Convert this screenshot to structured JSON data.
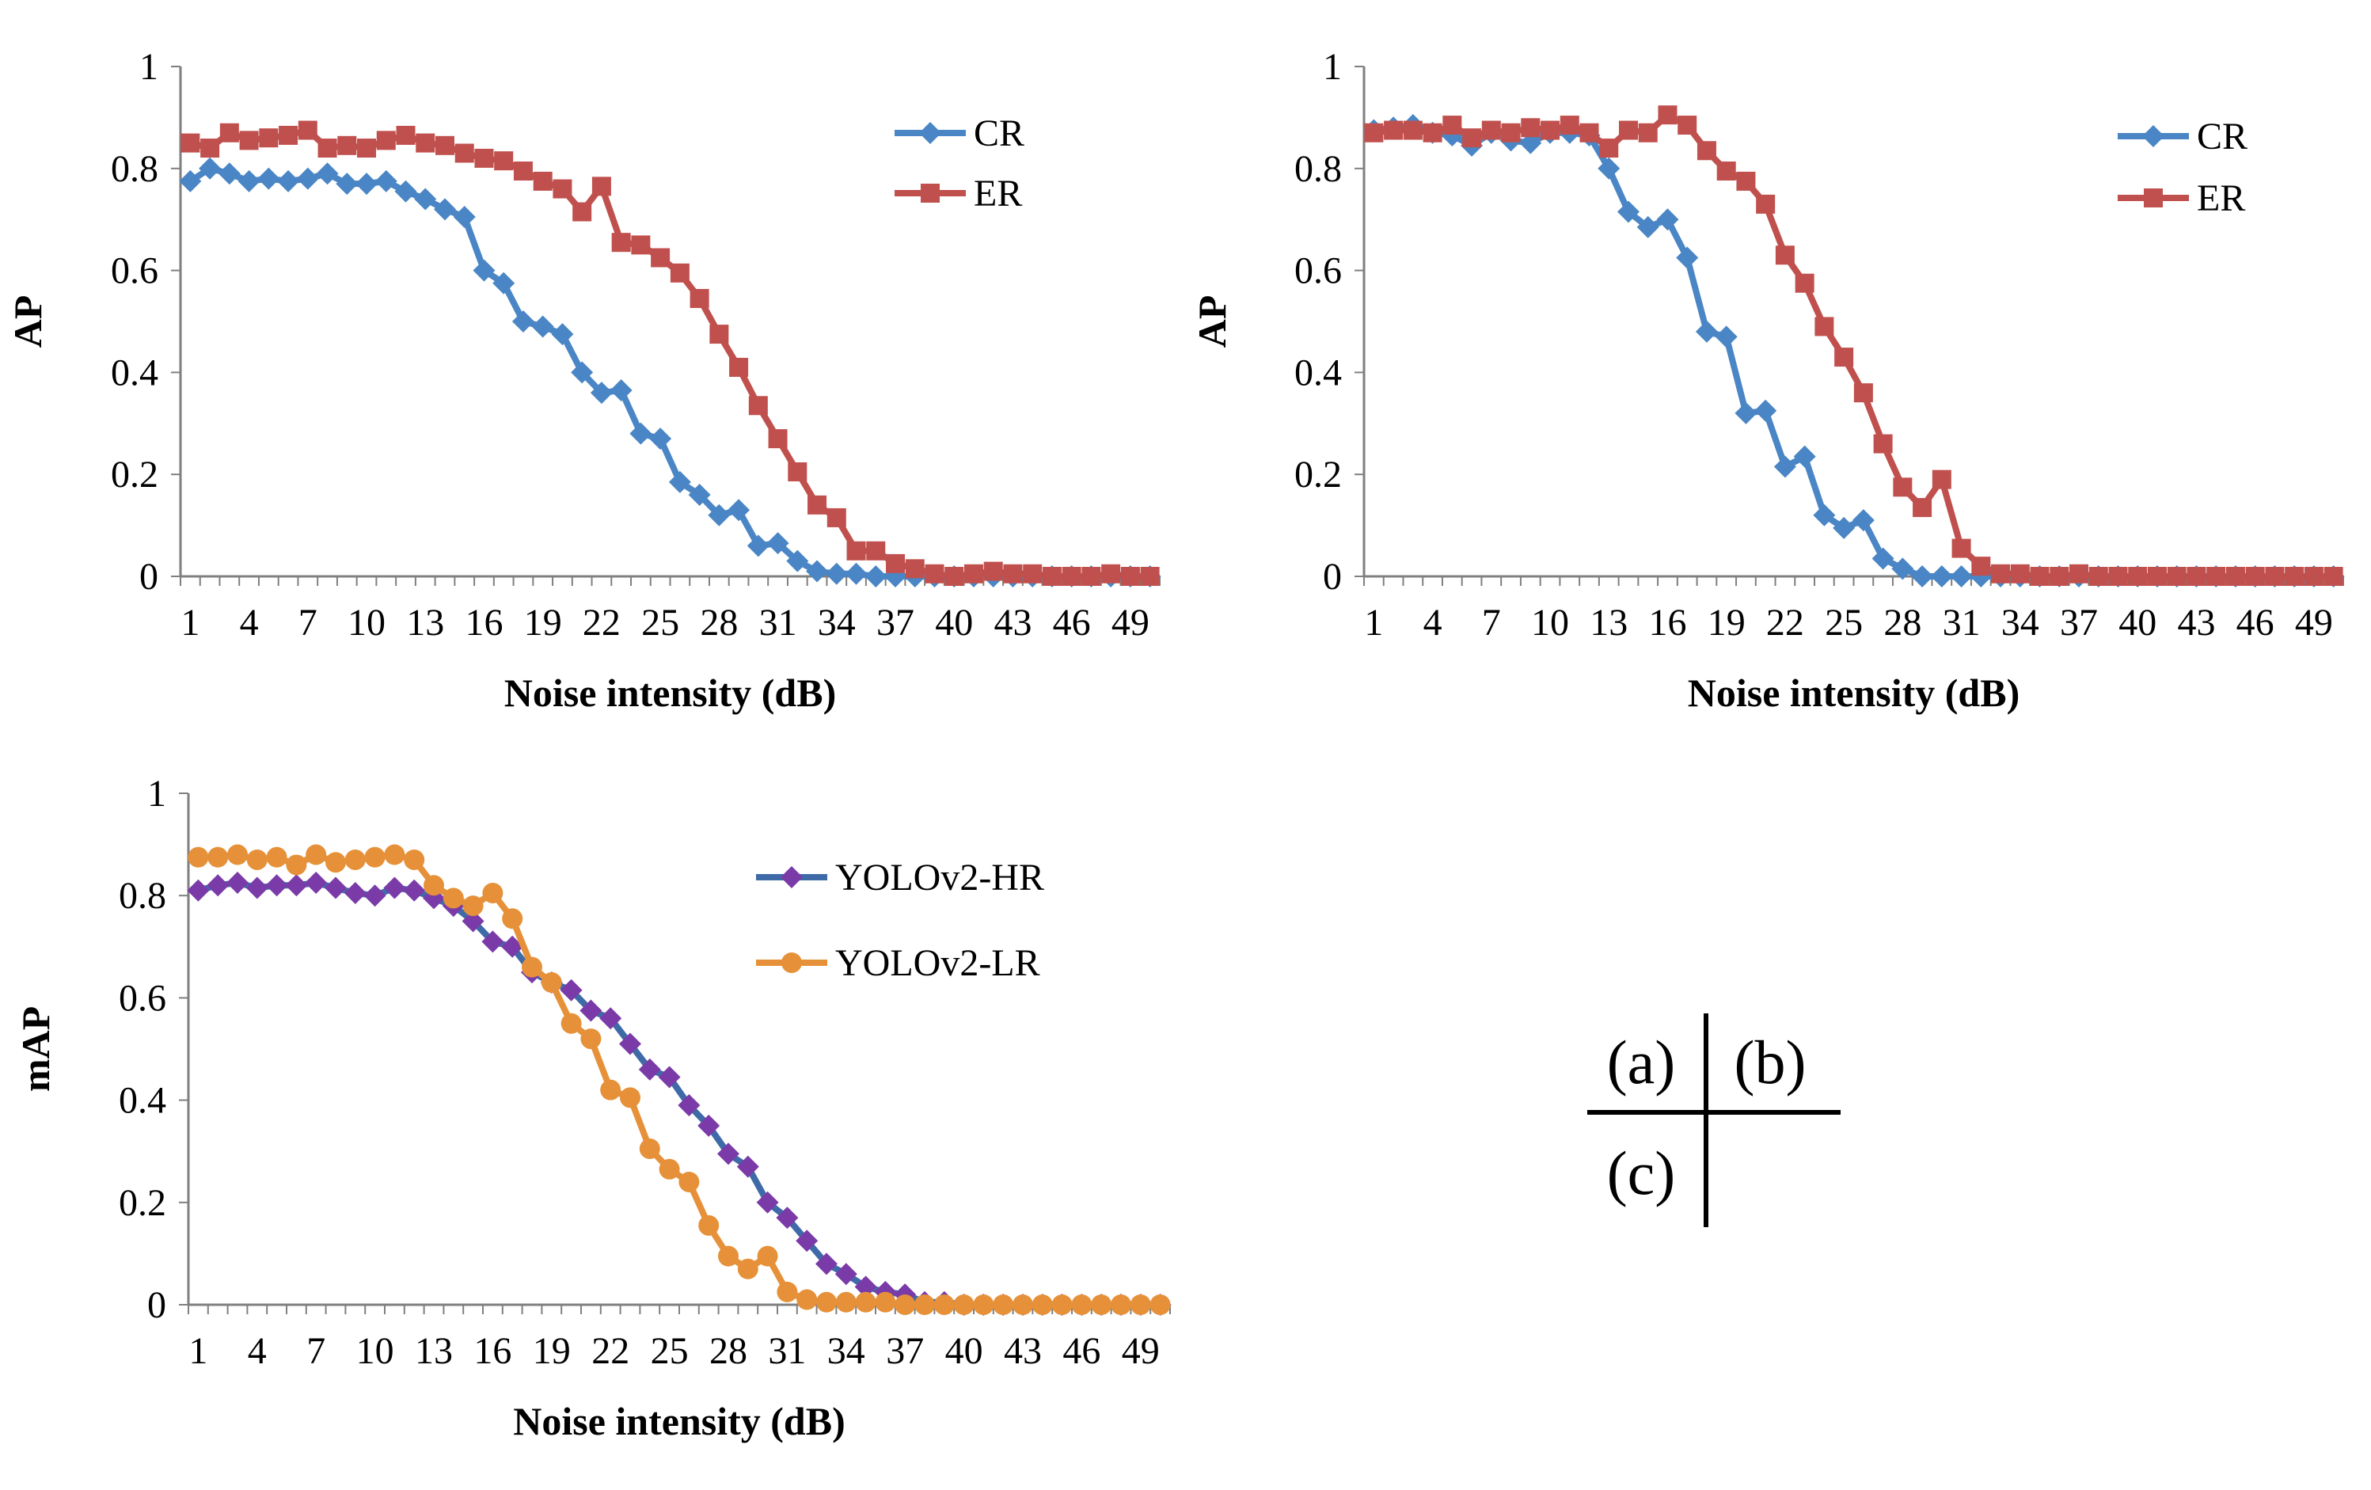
{
  "chart_data": [
    {
      "type": "line",
      "panel": "a",
      "xlabel": "Noise intensity (dB)",
      "ylabel": "AP",
      "ylim": [
        0,
        1
      ],
      "xlim": [
        1,
        50
      ],
      "x": [
        1,
        2,
        3,
        4,
        5,
        6,
        7,
        8,
        9,
        10,
        11,
        12,
        13,
        14,
        15,
        16,
        17,
        18,
        19,
        20,
        21,
        22,
        23,
        24,
        25,
        26,
        27,
        28,
        29,
        30,
        31,
        32,
        33,
        34,
        35,
        36,
        37,
        38,
        39,
        40,
        41,
        42,
        43,
        44,
        45,
        46,
        47,
        48,
        49,
        50
      ],
      "x_tick_labels": [
        "1",
        "4",
        "7",
        "10",
        "13",
        "16",
        "19",
        "22",
        "25",
        "28",
        "31",
        "34",
        "37",
        "40",
        "43",
        "46",
        "49"
      ],
      "y_tick_labels": [
        "0",
        "0.2",
        "0.4",
        "0.6",
        "0.8",
        "1"
      ],
      "grid": false,
      "legend_position": "top-right",
      "series": [
        {
          "name": "CR",
          "color": "#4A86C5",
          "marker": "diamond",
          "values": [
            0.775,
            0.8,
            0.79,
            0.775,
            0.78,
            0.775,
            0.78,
            0.79,
            0.77,
            0.77,
            0.775,
            0.755,
            0.74,
            0.72,
            0.705,
            0.6,
            0.575,
            0.5,
            0.49,
            0.475,
            0.4,
            0.36,
            0.365,
            0.28,
            0.27,
            0.185,
            0.16,
            0.12,
            0.13,
            0.06,
            0.065,
            0.03,
            0.01,
            0.005,
            0.005,
            0.0,
            0.0,
            0.0,
            0.0,
            0.0,
            0.0,
            0.0,
            0.0,
            0.0,
            0.0,
            0.0,
            0.0,
            0.0,
            0.0,
            0.0
          ]
        },
        {
          "name": "ER",
          "color": "#C0504D",
          "marker": "square",
          "values": [
            0.85,
            0.84,
            0.87,
            0.855,
            0.86,
            0.865,
            0.875,
            0.84,
            0.845,
            0.84,
            0.855,
            0.865,
            0.85,
            0.845,
            0.83,
            0.82,
            0.815,
            0.795,
            0.775,
            0.76,
            0.715,
            0.765,
            0.655,
            0.65,
            0.625,
            0.595,
            0.545,
            0.475,
            0.41,
            0.335,
            0.27,
            0.205,
            0.14,
            0.115,
            0.05,
            0.05,
            0.025,
            0.015,
            0.005,
            0.0,
            0.005,
            0.01,
            0.005,
            0.005,
            0.0,
            0.0,
            0.0,
            0.005,
            0.0,
            0.0
          ]
        }
      ]
    },
    {
      "type": "line",
      "panel": "b",
      "xlabel": "Noise intensity (dB)",
      "ylabel": "AP",
      "ylim": [
        0,
        1
      ],
      "xlim": [
        1,
        50
      ],
      "x": [
        1,
        2,
        3,
        4,
        5,
        6,
        7,
        8,
        9,
        10,
        11,
        12,
        13,
        14,
        15,
        16,
        17,
        18,
        19,
        20,
        21,
        22,
        23,
        24,
        25,
        26,
        27,
        28,
        29,
        30,
        31,
        32,
        33,
        34,
        35,
        36,
        37,
        38,
        39,
        40,
        41,
        42,
        43,
        44,
        45,
        46,
        47,
        48,
        49,
        50
      ],
      "x_tick_labels": [
        "1",
        "4",
        "7",
        "10",
        "13",
        "16",
        "19",
        "22",
        "25",
        "28",
        "31",
        "34",
        "37",
        "40",
        "43",
        "46",
        "49"
      ],
      "y_tick_labels": [
        "0",
        "0.2",
        "0.4",
        "0.6",
        "0.8",
        "1"
      ],
      "grid": false,
      "legend_position": "top-right",
      "series": [
        {
          "name": "CR",
          "color": "#4A86C5",
          "marker": "diamond",
          "values": [
            0.875,
            0.88,
            0.885,
            0.87,
            0.865,
            0.845,
            0.87,
            0.855,
            0.85,
            0.87,
            0.87,
            0.865,
            0.8,
            0.715,
            0.685,
            0.7,
            0.625,
            0.48,
            0.47,
            0.32,
            0.325,
            0.215,
            0.235,
            0.12,
            0.095,
            0.11,
            0.035,
            0.015,
            0.0,
            0.0,
            0.0,
            0.0,
            0.0,
            0.0,
            0.0,
            0.0,
            0.0,
            0.0,
            0.0,
            0.0,
            0.0,
            0.0,
            0.0,
            0.0,
            0.0,
            0.0,
            0.0,
            0.0,
            0.0,
            0.0
          ]
        },
        {
          "name": "ER",
          "color": "#C0504D",
          "marker": "square",
          "values": [
            0.87,
            0.875,
            0.875,
            0.87,
            0.885,
            0.86,
            0.875,
            0.87,
            0.88,
            0.875,
            0.885,
            0.87,
            0.84,
            0.875,
            0.87,
            0.905,
            0.885,
            0.835,
            0.795,
            0.775,
            0.73,
            0.63,
            0.575,
            0.49,
            0.43,
            0.36,
            0.26,
            0.175,
            0.135,
            0.19,
            0.055,
            0.02,
            0.005,
            0.005,
            0.0,
            0.0,
            0.005,
            0.0,
            0.0,
            0.0,
            0.0,
            0.0,
            0.0,
            0.0,
            0.0,
            0.0,
            0.0,
            0.0,
            0.0,
            0.0
          ]
        }
      ]
    },
    {
      "type": "line",
      "panel": "c",
      "xlabel": "Noise intensity (dB)",
      "ylabel": "mAP",
      "ylim": [
        0,
        1
      ],
      "xlim": [
        1,
        50
      ],
      "x": [
        1,
        2,
        3,
        4,
        5,
        6,
        7,
        8,
        9,
        10,
        11,
        12,
        13,
        14,
        15,
        16,
        17,
        18,
        19,
        20,
        21,
        22,
        23,
        24,
        25,
        26,
        27,
        28,
        29,
        30,
        31,
        32,
        33,
        34,
        35,
        36,
        37,
        38,
        39,
        40,
        41,
        42,
        43,
        44,
        45,
        46,
        47,
        48,
        49,
        50
      ],
      "x_tick_labels": [
        "1",
        "4",
        "7",
        "10",
        "13",
        "16",
        "19",
        "22",
        "25",
        "28",
        "31",
        "34",
        "37",
        "40",
        "43",
        "46",
        "49"
      ],
      "y_tick_labels": [
        "0",
        "0.2",
        "0.4",
        "0.6",
        "0.8",
        "1"
      ],
      "grid": false,
      "legend_position": "top-right",
      "series": [
        {
          "name": "YOLOv2-HR",
          "color": "#3F6AA8",
          "marker_color": "#7A3BA8",
          "marker": "diamond",
          "values": [
            0.81,
            0.82,
            0.825,
            0.815,
            0.82,
            0.82,
            0.825,
            0.815,
            0.805,
            0.8,
            0.815,
            0.81,
            0.795,
            0.78,
            0.75,
            0.71,
            0.7,
            0.65,
            0.63,
            0.615,
            0.575,
            0.56,
            0.51,
            0.46,
            0.445,
            0.39,
            0.35,
            0.295,
            0.27,
            0.2,
            0.17,
            0.125,
            0.08,
            0.06,
            0.035,
            0.025,
            0.02,
            0.005,
            0.005,
            0.0,
            0.0,
            0.0,
            0.0,
            0.0,
            0.0,
            0.0,
            0.0,
            0.0,
            0.0,
            0.0
          ]
        },
        {
          "name": "YOLOv2-LR",
          "color": "#E69139",
          "marker": "circle",
          "values": [
            0.875,
            0.875,
            0.88,
            0.87,
            0.875,
            0.86,
            0.88,
            0.865,
            0.87,
            0.875,
            0.88,
            0.87,
            0.82,
            0.795,
            0.78,
            0.805,
            0.755,
            0.66,
            0.63,
            0.55,
            0.52,
            0.42,
            0.405,
            0.305,
            0.265,
            0.24,
            0.155,
            0.095,
            0.07,
            0.095,
            0.025,
            0.01,
            0.005,
            0.005,
            0.005,
            0.005,
            0.0,
            0.0,
            0.0,
            0.0,
            0.0,
            0.0,
            0.0,
            0.0,
            0.0,
            0.0,
            0.0,
            0.0,
            0.0,
            0.0
          ]
        }
      ]
    }
  ],
  "panel_key": {
    "a": "(a)",
    "b": "(b)",
    "c": "(c)"
  }
}
